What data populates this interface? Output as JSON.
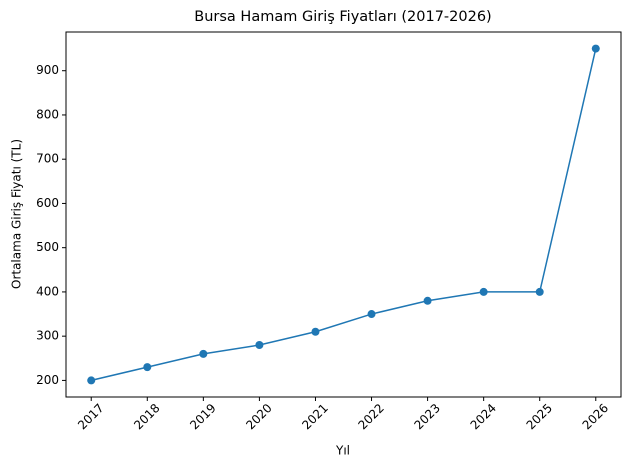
{
  "chart_data": {
    "type": "line",
    "title": "Bursa Hamam Giriş Fiyatları (2017-2026)",
    "x_label": "Yıl",
    "y_label": "Ortalama Giriş Fiyatı (TL)",
    "x": [
      2017,
      2018,
      2019,
      2020,
      2021,
      2022,
      2023,
      2024,
      2025,
      2026
    ],
    "values": [
      200,
      230,
      260,
      280,
      310,
      350,
      380,
      400,
      400,
      950
    ],
    "color": "#1f77b4",
    "xlim": [
      2016.55,
      2026.45
    ],
    "xticks": [
      2017,
      2018,
      2019,
      2020,
      2021,
      2022,
      2023,
      2024,
      2025,
      2026
    ],
    "ylim": [
      162.5,
      987.5
    ],
    "yticks": [
      200,
      300,
      400,
      500,
      600,
      700,
      800,
      900
    ],
    "grid": false,
    "markers": true
  }
}
